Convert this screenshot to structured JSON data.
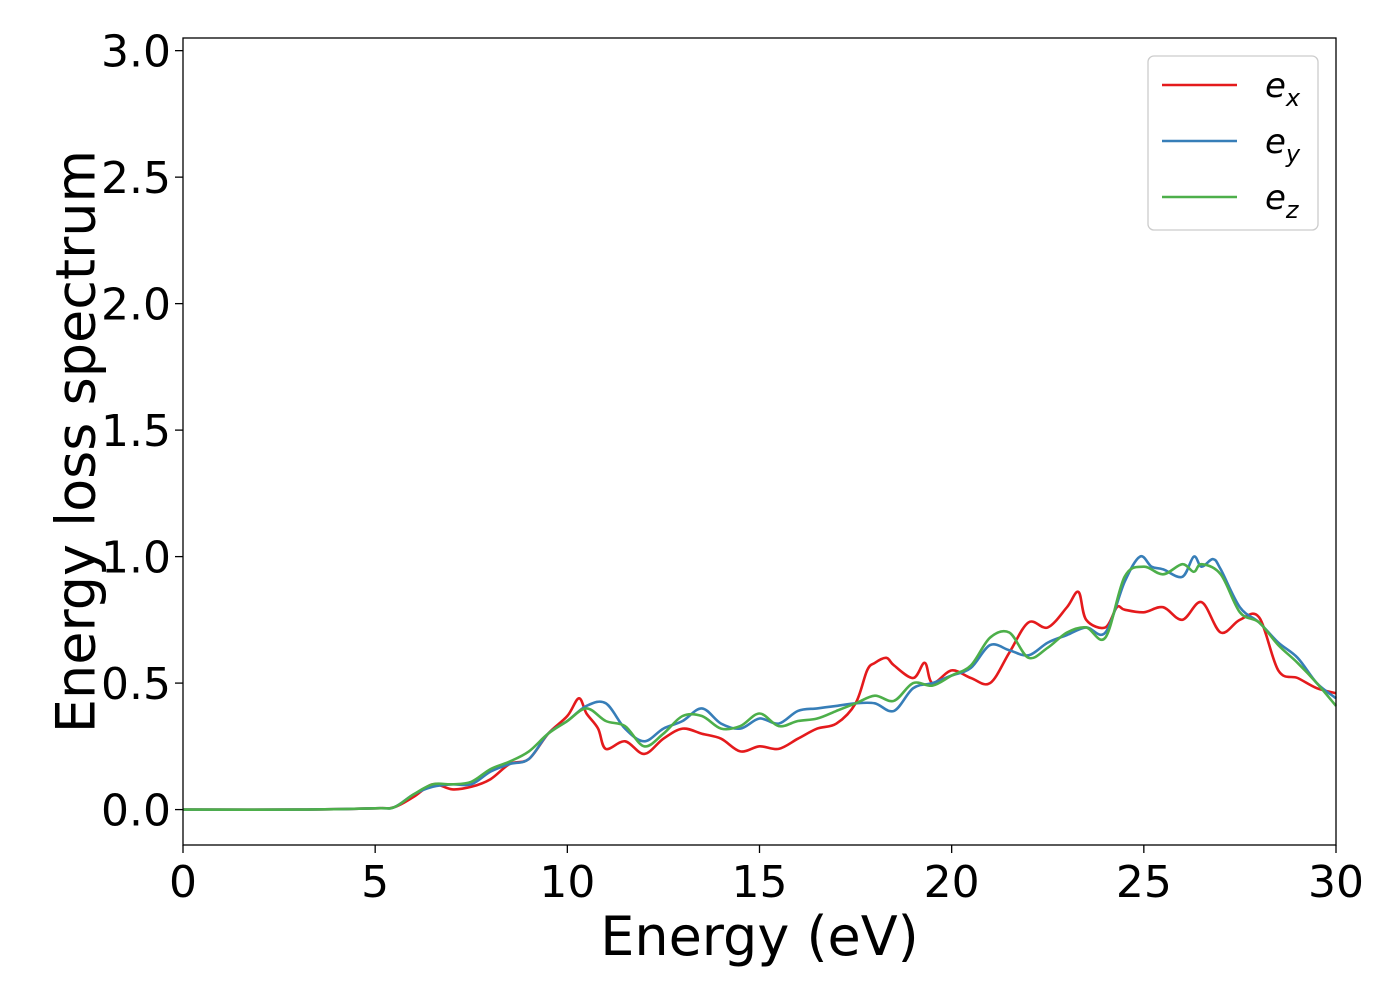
{
  "chart_data": {
    "type": "line",
    "xlabel": "Energy (eV)",
    "ylabel": "Energy loss spectrum",
    "xlim": [
      0,
      30
    ],
    "ylim": [
      -0.14,
      3.05
    ],
    "xticks": [
      0,
      5,
      10,
      15,
      20,
      25,
      30
    ],
    "yticks": [
      0.0,
      0.5,
      1.0,
      1.5,
      2.0,
      2.5,
      3.0
    ],
    "grid": false,
    "legend_position": "top-right",
    "series": [
      {
        "name": "e_x",
        "label_base": "e",
        "label_sub": "x",
        "color": "#e41a1c",
        "x": [
          0,
          3,
          5,
          5.5,
          6,
          6.5,
          7,
          7.5,
          8,
          8.5,
          9,
          9.5,
          10,
          10.3,
          10.5,
          10.8,
          11,
          11.5,
          12,
          12.5,
          13,
          13.5,
          14,
          14.5,
          15,
          15.5,
          16,
          16.5,
          17,
          17.5,
          17.8,
          18,
          18.3,
          18.5,
          19,
          19.3,
          19.5,
          20,
          20.5,
          21,
          21.5,
          22,
          22.5,
          23,
          23.3,
          23.5,
          24,
          24.3,
          24.5,
          25,
          25.5,
          26,
          26.5,
          27,
          27.5,
          28,
          28.5,
          29,
          29.5,
          30
        ],
        "y": [
          0.0,
          0.0,
          0.005,
          0.01,
          0.05,
          0.1,
          0.08,
          0.09,
          0.12,
          0.18,
          0.2,
          0.3,
          0.37,
          0.44,
          0.38,
          0.32,
          0.24,
          0.27,
          0.22,
          0.28,
          0.32,
          0.3,
          0.28,
          0.23,
          0.25,
          0.24,
          0.28,
          0.32,
          0.34,
          0.42,
          0.55,
          0.58,
          0.6,
          0.57,
          0.52,
          0.58,
          0.5,
          0.55,
          0.52,
          0.5,
          0.62,
          0.74,
          0.72,
          0.8,
          0.86,
          0.75,
          0.72,
          0.8,
          0.79,
          0.78,
          0.8,
          0.75,
          0.82,
          0.7,
          0.75,
          0.76,
          0.55,
          0.52,
          0.48,
          0.46
        ]
      },
      {
        "name": "e_y",
        "label_base": "e",
        "label_sub": "y",
        "color": "#377eb8",
        "x": [
          0,
          3,
          5,
          5.5,
          6,
          6.5,
          7,
          7.5,
          8,
          8.5,
          9,
          9.5,
          10,
          10.5,
          11,
          11.5,
          12,
          12.5,
          13,
          13.5,
          14,
          14.5,
          15,
          15.5,
          16,
          16.5,
          17,
          17.5,
          18,
          18.5,
          19,
          19.5,
          20,
          20.5,
          21,
          21.5,
          22,
          22.5,
          23,
          23.5,
          24,
          24.5,
          24.9,
          25.2,
          25.5,
          26,
          26.3,
          26.5,
          26.8,
          27,
          27.5,
          28,
          28.5,
          29,
          29.5,
          30
        ],
        "y": [
          0.0,
          0.0,
          0.005,
          0.01,
          0.06,
          0.09,
          0.1,
          0.1,
          0.15,
          0.18,
          0.2,
          0.3,
          0.35,
          0.41,
          0.42,
          0.32,
          0.27,
          0.32,
          0.35,
          0.4,
          0.34,
          0.32,
          0.36,
          0.34,
          0.39,
          0.4,
          0.41,
          0.42,
          0.42,
          0.39,
          0.48,
          0.5,
          0.53,
          0.56,
          0.65,
          0.63,
          0.61,
          0.66,
          0.69,
          0.72,
          0.7,
          0.9,
          1.0,
          0.96,
          0.95,
          0.92,
          1.0,
          0.96,
          0.99,
          0.95,
          0.8,
          0.74,
          0.66,
          0.6,
          0.5,
          0.44
        ]
      },
      {
        "name": "e_z",
        "label_base": "e",
        "label_sub": "z",
        "color": "#4daf4a",
        "x": [
          0,
          3,
          5,
          5.5,
          6,
          6.5,
          7,
          7.5,
          8,
          8.5,
          9,
          9.5,
          10,
          10.5,
          11,
          11.5,
          12,
          12.5,
          13,
          13.5,
          14,
          14.5,
          15,
          15.5,
          16,
          16.5,
          17,
          17.5,
          18,
          18.5,
          19,
          19.5,
          20,
          20.5,
          21,
          21.5,
          22,
          22.5,
          23,
          23.5,
          24,
          24.5,
          25,
          25.5,
          26,
          26.3,
          26.5,
          27,
          27.5,
          28,
          28.5,
          29,
          29.5,
          30
        ],
        "y": [
          0.0,
          0.0,
          0.005,
          0.01,
          0.06,
          0.1,
          0.1,
          0.11,
          0.16,
          0.19,
          0.23,
          0.3,
          0.35,
          0.4,
          0.35,
          0.33,
          0.25,
          0.3,
          0.37,
          0.37,
          0.32,
          0.33,
          0.38,
          0.33,
          0.35,
          0.36,
          0.39,
          0.42,
          0.45,
          0.43,
          0.5,
          0.49,
          0.53,
          0.57,
          0.68,
          0.7,
          0.6,
          0.64,
          0.7,
          0.72,
          0.68,
          0.92,
          0.96,
          0.93,
          0.97,
          0.94,
          0.97,
          0.93,
          0.78,
          0.74,
          0.65,
          0.58,
          0.5,
          0.41
        ]
      }
    ]
  }
}
